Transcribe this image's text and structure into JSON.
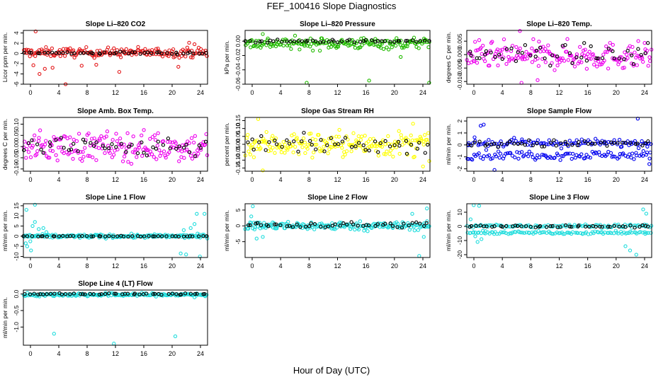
{
  "figure": {
    "title": "FEF_100416  Slope Diagnostics",
    "xlabel": "Hour of Day (UTC)"
  },
  "chart_data": [
    {
      "type": "scatter",
      "title": "Slope Li–820 CO2",
      "ylabel": "Licor ppm per min.",
      "xlim": [
        0,
        24
      ],
      "ylim": [
        -6,
        4.5
      ],
      "xticks": [
        "0",
        "4",
        "8",
        "12",
        "16",
        "20",
        "24"
      ],
      "yticks": [
        {
          "v": 4,
          "t": "4"
        },
        {
          "v": 2,
          "t": "2"
        },
        {
          "v": 0,
          "t": "0"
        },
        {
          "v": -2,
          "t": "-2"
        },
        {
          "v": -4,
          "t": "-4"
        },
        {
          "v": -6,
          "t": "-6"
        }
      ],
      "grid": false,
      "series": [
        {
          "color": "#e41a1c",
          "center": 0.2,
          "spread": 0.9,
          "count": 190,
          "outliers": [
            [
              1.6,
              4.3
            ],
            [
              2.1,
              -4
            ],
            [
              1.3,
              -2.3
            ],
            [
              3.8,
              -2.8
            ],
            [
              5.5,
              -6
            ],
            [
              2.8,
              -3
            ],
            [
              9.5,
              -2.2
            ],
            [
              12.5,
              -3.6
            ],
            [
              20.2,
              -2.6
            ],
            [
              21.6,
              2.1
            ],
            [
              22.3,
              1.8
            ],
            [
              7.6,
              -2.4
            ]
          ]
        },
        {
          "color": "#000000",
          "center": 0.1,
          "spread": 0.25,
          "count": 48,
          "outliers": []
        }
      ]
    },
    {
      "type": "scatter",
      "title": "Slope Li–820 Pressure",
      "ylabel": "kPa per min.",
      "xlim": [
        0,
        24
      ],
      "ylim": [
        -0.06,
        0.015
      ],
      "xticks": [
        "0",
        "4",
        "8",
        "12",
        "16",
        "20",
        "24"
      ],
      "yticks": [
        {
          "v": 0,
          "t": "0.00"
        },
        {
          "v": -0.02,
          "t": "-0.02"
        },
        {
          "v": -0.04,
          "t": "-0.04"
        },
        {
          "v": -0.06,
          "t": "-0.06"
        }
      ],
      "grid": false,
      "series": [
        {
          "color": "#22bb00",
          "center": -0.003,
          "spread": 0.008,
          "count": 190,
          "outliers": [
            [
              8,
              -0.058
            ],
            [
              16.1,
              -0.055
            ],
            [
              20.2,
              -0.022
            ],
            [
              23.9,
              -0.058
            ],
            [
              2.3,
              0.01
            ]
          ]
        },
        {
          "color": "#000000",
          "center": 0.0,
          "spread": 0.002,
          "count": 48,
          "outliers": []
        }
      ]
    },
    {
      "type": "scatter",
      "title": "Slope Li–820 Temp.",
      "ylabel": "degrees C per min.",
      "xlim": [
        0,
        24
      ],
      "ylim": [
        -0.011,
        0.009
      ],
      "xticks": [
        "0",
        "4",
        "8",
        "12",
        "16",
        "20",
        "24"
      ],
      "yticks": [
        {
          "v": 0.005,
          "t": "0.005"
        },
        {
          "v": 0,
          "t": "0.000"
        },
        {
          "v": -0.005,
          "t": "-0.005"
        },
        {
          "v": -0.01,
          "t": "-0.010"
        }
      ],
      "grid": false,
      "series": [
        {
          "color": "#ee00ee",
          "center": -0.0005,
          "spread": 0.005,
          "count": 190,
          "outliers": [
            [
              6.9,
              0.0088
            ],
            [
              7.1,
              -0.0105
            ],
            [
              9.2,
              -0.0095
            ]
          ]
        },
        {
          "color": "#000000",
          "center": 0.0,
          "spread": 0.0035,
          "count": 48,
          "outliers": []
        }
      ]
    },
    {
      "type": "scatter",
      "title": "Slope Amb. Box Temp.",
      "ylabel": "degrees C per min.",
      "xlim": [
        0,
        24
      ],
      "ylim": [
        -0.11,
        0.13
      ],
      "xticks": [
        "0",
        "4",
        "8",
        "12",
        "16",
        "20",
        "24"
      ],
      "yticks": [
        {
          "v": 0.1,
          "t": "0.10"
        },
        {
          "v": 0.05,
          "t": "0.05"
        },
        {
          "v": 0,
          "t": "0.00"
        },
        {
          "v": -0.05,
          "t": "-0.05"
        },
        {
          "v": -0.1,
          "t": "-0.10"
        }
      ],
      "grid": false,
      "series": [
        {
          "color": "#ee00ee",
          "center": 0.0,
          "spread": 0.065,
          "count": 190,
          "outliers": []
        },
        {
          "color": "#000000",
          "center": 0.0,
          "spread": 0.05,
          "count": 48,
          "outliers": []
        }
      ]
    },
    {
      "type": "scatter",
      "title": "Slope Gas Stream RH",
      "ylabel": "percent per min.",
      "xlim": [
        0,
        24
      ],
      "ylim": [
        -0.17,
        0.17
      ],
      "xticks": [
        "0",
        "4",
        "8",
        "12",
        "16",
        "20",
        "24"
      ],
      "yticks": [
        {
          "v": 0.15,
          "t": "0.15"
        },
        {
          "v": 0.1,
          "t": "0.10"
        },
        {
          "v": 0.05,
          "t": "0.05"
        },
        {
          "v": 0,
          "t": "0.00"
        },
        {
          "v": -0.05,
          "t": "-0.05"
        },
        {
          "v": -0.1,
          "t": "-0.10"
        },
        {
          "v": -0.15,
          "t": "-0.15"
        }
      ],
      "grid": false,
      "series": [
        {
          "color": "#ffff00",
          "center": 0.0,
          "spread": 0.08,
          "count": 200,
          "outliers": [
            [
              2.3,
              -0.165
            ],
            [
              1.7,
              0.16
            ],
            [
              23.1,
              -0.14
            ],
            [
              21.8,
              0.13
            ]
          ]
        },
        {
          "color": "#000000",
          "center": 0.0,
          "spread": 0.05,
          "count": 48,
          "outliers": []
        }
      ]
    },
    {
      "type": "scatter",
      "title": "Slope Sample Flow",
      "ylabel": "ml/min per min.",
      "xlim": [
        0,
        24
      ],
      "ylim": [
        -2.2,
        2.3
      ],
      "xticks": [
        "0",
        "4",
        "8",
        "12",
        "16",
        "20",
        "24"
      ],
      "yticks": [
        {
          "v": 2,
          "t": "2"
        },
        {
          "v": 1,
          "t": "1"
        },
        {
          "v": 0,
          "t": "0"
        },
        {
          "v": -1,
          "t": "-1"
        },
        {
          "v": -2,
          "t": "-2"
        }
      ],
      "grid": false,
      "series": [
        {
          "color": "#0000ee",
          "center": 0.15,
          "spread": 0.35,
          "count": 110,
          "outliers": [
            [
              1.8,
              1.6
            ],
            [
              2.2,
              1.7
            ],
            [
              22.2,
              2.2
            ],
            [
              3.6,
              -2.1
            ],
            [
              23.7,
              -1.6
            ]
          ]
        },
        {
          "color": "#0000ee",
          "center": -0.85,
          "spread": 0.35,
          "count": 110,
          "outliers": []
        },
        {
          "color": "#000000",
          "center": 0.1,
          "spread": 0.3,
          "count": 48,
          "outliers": []
        }
      ]
    },
    {
      "type": "scatter",
      "title": "Slope Line 1 Flow",
      "ylabel": "ml/min per min.",
      "xlim": [
        0,
        24
      ],
      "ylim": [
        -10.5,
        16
      ],
      "xticks": [
        "0",
        "4",
        "8",
        "12",
        "16",
        "20",
        "24"
      ],
      "yticks": [
        {
          "v": 15,
          "t": "15"
        },
        {
          "v": 10,
          "t": "10"
        },
        {
          "v": 5,
          "t": "5"
        },
        {
          "v": 0,
          "t": "0"
        },
        {
          "v": -5,
          "t": "-5"
        },
        {
          "v": -10,
          "t": "-10"
        }
      ],
      "grid": false,
      "series": [
        {
          "color": "#22dddd",
          "center": 0.0,
          "spread": 0.9,
          "count": 190,
          "outliers": [
            [
              0.3,
              -3.5
            ],
            [
              0.5,
              -5
            ],
            [
              0.9,
              -2.5
            ],
            [
              1.2,
              5
            ],
            [
              1.5,
              7
            ],
            [
              0.4,
              13
            ],
            [
              1.5,
              15.5
            ],
            [
              2.0,
              3.5
            ],
            [
              2.6,
              4
            ],
            [
              3.0,
              2
            ],
            [
              20.5,
              -8.5
            ],
            [
              21.2,
              -9
            ],
            [
              22.6,
              11
            ],
            [
              23.6,
              11
            ],
            [
              21.8,
              4
            ],
            [
              23.0,
              -10
            ],
            [
              22.3,
              6
            ],
            [
              20.9,
              3
            ],
            [
              1.0,
              -7
            ]
          ]
        },
        {
          "color": "#000000",
          "center": 0.0,
          "spread": 0.2,
          "count": 48,
          "outliers": []
        }
      ]
    },
    {
      "type": "scatter",
      "title": "Slope Line 2 Flow",
      "ylabel": "ml/min per min.",
      "xlim": [
        0,
        24
      ],
      "ylim": [
        -10,
        7
      ],
      "xticks": [
        "0",
        "4",
        "8",
        "12",
        "16",
        "20",
        "24"
      ],
      "yticks": [
        {
          "v": 5,
          "t": "5"
        },
        {
          "v": 0,
          "t": "0"
        },
        {
          "v": -5,
          "t": "-5"
        }
      ],
      "grid": false,
      "series": [
        {
          "color": "#22dddd",
          "center": 0.0,
          "spread": 1.3,
          "count": 200,
          "outliers": [
            [
              1.0,
              6.2
            ],
            [
              1.5,
              -4
            ],
            [
              2.3,
              -3.5
            ],
            [
              0.8,
              3
            ],
            [
              22.6,
              -9.5
            ],
            [
              23.6,
              5.5
            ],
            [
              21.7,
              3.8
            ],
            [
              23.2,
              -3.5
            ]
          ]
        },
        {
          "color": "#000000",
          "center": 0.3,
          "spread": 0.9,
          "count": 48,
          "outliers": []
        }
      ]
    },
    {
      "type": "scatter",
      "title": "Slope Line 3 Flow",
      "ylabel": "ml/min per min.",
      "xlim": [
        0,
        24
      ],
      "ylim": [
        -22,
        16
      ],
      "xticks": [
        "0",
        "4",
        "8",
        "12",
        "16",
        "20",
        "24"
      ],
      "yticks": [
        {
          "v": 10,
          "t": "10"
        },
        {
          "v": 0,
          "t": "0"
        },
        {
          "v": -10,
          "t": "-10"
        },
        {
          "v": -20,
          "t": "-20"
        }
      ],
      "grid": false,
      "series": [
        {
          "color": "#22dddd",
          "center": 0.3,
          "spread": 1.2,
          "count": 110,
          "outliers": [
            [
              0.9,
              15
            ],
            [
              1.6,
              14.5
            ],
            [
              0.5,
              5
            ],
            [
              1.1,
              -7
            ],
            [
              1.9,
              -9
            ],
            [
              2.4,
              -5
            ],
            [
              22.9,
              12
            ],
            [
              23.3,
              9
            ],
            [
              20.6,
              -14
            ],
            [
              21.2,
              -17
            ],
            [
              22.0,
              -20
            ],
            [
              1.4,
              -11
            ]
          ]
        },
        {
          "color": "#22dddd",
          "center": -4.5,
          "spread": 1.0,
          "count": 110,
          "outliers": []
        },
        {
          "color": "#000000",
          "center": 0.0,
          "spread": 0.8,
          "count": 48,
          "outliers": []
        }
      ]
    },
    {
      "type": "scatter",
      "title": "Slope Line 4 (LT) Flow",
      "ylabel": "ml/min per min.",
      "xlim": [
        0,
        24
      ],
      "ylim": [
        -1.55,
        0.12
      ],
      "xticks": [
        "0",
        "4",
        "8",
        "12",
        "16",
        "20",
        "24"
      ],
      "yticks": [
        {
          "v": 0,
          "t": "0.0"
        },
        {
          "v": -0.5,
          "t": "-0.5"
        },
        {
          "v": -1,
          "t": "-1.0"
        }
      ],
      "grid": false,
      "series": [
        {
          "color": "#22dddd",
          "center": -0.02,
          "spread": 0.05,
          "count": 200,
          "outliers": [
            [
              4.0,
              -1.2
            ],
            [
              11.8,
              -1.5
            ],
            [
              19.8,
              -1.28
            ],
            [
              22.3,
              -0.1
            ]
          ]
        },
        {
          "color": "#000000",
          "center": 0.0,
          "spread": 0.02,
          "count": 48,
          "outliers": []
        }
      ]
    }
  ]
}
